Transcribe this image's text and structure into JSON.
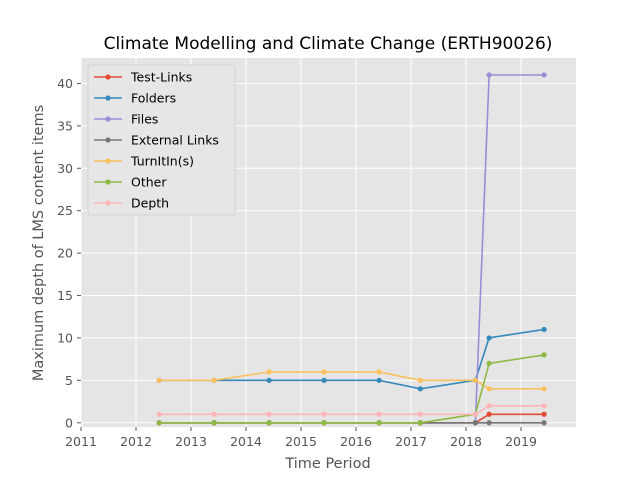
{
  "chart_data": {
    "type": "line",
    "title": "Climate Modelling and Climate Change (ERTH90026)",
    "xlabel": "Time Period",
    "ylabel": "Maximum depth of LMS content items",
    "xlim": [
      2011,
      2020
    ],
    "ylim": [
      -0.5,
      43
    ],
    "x_ticks": [
      "2011",
      "2012",
      "2013",
      "2014",
      "2015",
      "2016",
      "2017",
      "2018",
      "2019"
    ],
    "y_ticks": [
      "0",
      "5",
      "10",
      "15",
      "20",
      "25",
      "30",
      "35",
      "40"
    ],
    "grid": true,
    "legend_position": "upper-left",
    "x": [
      2012.42,
      2013.42,
      2014.42,
      2015.42,
      2016.42,
      2017.17,
      2018.17,
      2018.42,
      2019.42
    ],
    "series": [
      {
        "name": "Test-Links",
        "color": "#E24A33",
        "values": [
          0,
          0,
          0,
          0,
          0,
          0,
          0,
          1,
          1
        ]
      },
      {
        "name": "Folders",
        "color": "#348ABD",
        "values": [
          5,
          5,
          5,
          5,
          5,
          4,
          5,
          10,
          11
        ]
      },
      {
        "name": "Files",
        "color": "#988ED5",
        "values": [
          0,
          0,
          0,
          0,
          0,
          0,
          0,
          41,
          41
        ]
      },
      {
        "name": "External Links",
        "color": "#777777",
        "values": [
          0,
          0,
          0,
          0,
          0,
          0,
          0,
          0,
          0
        ]
      },
      {
        "name": "TurnItIn(s)",
        "color": "#FBC15E",
        "values": [
          5,
          5,
          6,
          6,
          6,
          5,
          5,
          4,
          4
        ]
      },
      {
        "name": "Other",
        "color": "#8EBA42",
        "values": [
          0,
          0,
          0,
          0,
          0,
          0,
          1,
          7,
          8
        ]
      },
      {
        "name": "Depth",
        "color": "#FFB5B8",
        "values": [
          1,
          1,
          1,
          1,
          1,
          1,
          1,
          2,
          2
        ]
      }
    ]
  }
}
